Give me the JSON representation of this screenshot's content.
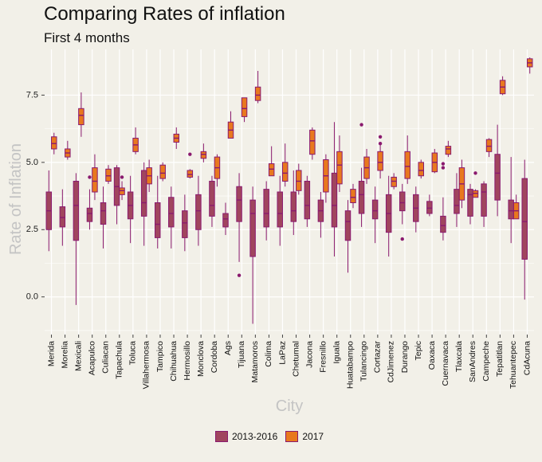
{
  "title": "Comparing Rates of inflation",
  "subtitle": "First 4 months",
  "chart_data": {
    "type": "boxplot",
    "title": "Comparing Rates of inflation",
    "subtitle": "First 4 months",
    "xlabel": "City",
    "ylabel": "Rate of Inflation",
    "ylim": [
      -1.4,
      9.2
    ],
    "yticks": [
      0.0,
      2.5,
      5.0,
      7.5
    ],
    "ytick_labels": [
      "0.0",
      "2.5",
      "5.0",
      "7.5"
    ],
    "grid": true,
    "legend_position": "bottom",
    "series": [
      {
        "name": "2013-2016",
        "color": "#a0455e"
      },
      {
        "name": "2017",
        "color": "#e8781e"
      }
    ],
    "cities": [
      {
        "city": "Merida",
        "a": {
          "min": 1.7,
          "q1": 2.5,
          "median": 3.2,
          "q3": 3.9,
          "max": 4.7,
          "outliers": []
        },
        "b": {
          "min": 5.3,
          "q1": 5.5,
          "median": 5.7,
          "q3": 5.95,
          "max": 6.1,
          "outliers": []
        }
      },
      {
        "city": "Morelia",
        "a": {
          "min": 1.9,
          "q1": 2.6,
          "median": 2.95,
          "q3": 3.35,
          "max": 4.0,
          "outliers": []
        },
        "b": {
          "min": 5.1,
          "q1": 5.2,
          "median": 5.35,
          "q3": 5.5,
          "max": 5.8,
          "outliers": []
        }
      },
      {
        "city": "Mexicali",
        "a": {
          "min": -0.3,
          "q1": 2.1,
          "median": 3.4,
          "q3": 4.3,
          "max": 4.6,
          "outliers": []
        },
        "b": {
          "min": 5.95,
          "q1": 6.4,
          "median": 6.75,
          "q3": 7.0,
          "max": 7.6,
          "outliers": []
        }
      },
      {
        "city": "Acapulco",
        "a": {
          "min": 2.5,
          "q1": 2.8,
          "median": 3.1,
          "q3": 3.3,
          "max": 4.0,
          "outliers": [
            4.45
          ]
        },
        "b": {
          "min": 3.6,
          "q1": 3.9,
          "median": 4.3,
          "q3": 4.8,
          "max": 5.3,
          "outliers": []
        }
      },
      {
        "city": "Culiacan",
        "a": {
          "min": 1.8,
          "q1": 2.7,
          "median": 3.2,
          "q3": 3.5,
          "max": 4.1,
          "outliers": []
        },
        "b": {
          "min": 4.2,
          "q1": 4.3,
          "median": 4.5,
          "q3": 4.75,
          "max": 4.9,
          "outliers": []
        }
      },
      {
        "city": "Tapachula",
        "a": {
          "min": 2.7,
          "q1": 3.4,
          "median": 4.1,
          "q3": 4.8,
          "max": 4.9,
          "outliers": []
        },
        "b": {
          "min": 3.6,
          "q1": 3.8,
          "median": 3.95,
          "q3": 4.05,
          "max": 4.3,
          "outliers": [
            4.45
          ]
        }
      },
      {
        "city": "Toluca",
        "a": {
          "min": 2.0,
          "q1": 2.9,
          "median": 3.4,
          "q3": 3.9,
          "max": 4.5,
          "outliers": []
        },
        "b": {
          "min": 5.3,
          "q1": 5.4,
          "median": 5.65,
          "q3": 5.9,
          "max": 6.3,
          "outliers": []
        }
      },
      {
        "city": "Villahermosa",
        "a": {
          "min": 1.9,
          "q1": 3.0,
          "median": 3.5,
          "q3": 4.7,
          "max": 5.0,
          "outliers": []
        },
        "b": {
          "min": 3.9,
          "q1": 4.2,
          "median": 4.5,
          "q3": 4.8,
          "max": 5.1,
          "outliers": []
        }
      },
      {
        "city": "Tampico",
        "a": {
          "min": 1.8,
          "q1": 2.2,
          "median": 2.7,
          "q3": 3.5,
          "max": 4.5,
          "outliers": []
        },
        "b": {
          "min": 4.3,
          "q1": 4.4,
          "median": 4.6,
          "q3": 4.9,
          "max": 5.0,
          "outliers": []
        }
      },
      {
        "city": "Chihuahua",
        "a": {
          "min": 1.8,
          "q1": 2.6,
          "median": 3.1,
          "q3": 3.7,
          "max": 4.1,
          "outliers": []
        },
        "b": {
          "min": 5.5,
          "q1": 5.75,
          "median": 5.9,
          "q3": 6.05,
          "max": 6.3,
          "outliers": []
        }
      },
      {
        "city": "Hermosillo",
        "a": {
          "min": 1.7,
          "q1": 2.2,
          "median": 2.75,
          "q3": 3.2,
          "max": 3.8,
          "outliers": []
        },
        "b": {
          "min": 4.4,
          "q1": 4.45,
          "median": 4.55,
          "q3": 4.7,
          "max": 4.75,
          "outliers": [
            5.3
          ]
        }
      },
      {
        "city": "Monclova",
        "a": {
          "min": 1.9,
          "q1": 2.5,
          "median": 3.2,
          "q3": 3.8,
          "max": 4.5,
          "outliers": []
        },
        "b": {
          "min": 5.0,
          "q1": 5.15,
          "median": 5.3,
          "q3": 5.4,
          "max": 5.7,
          "outliers": []
        }
      },
      {
        "city": "Cordoba",
        "a": {
          "min": 2.6,
          "q1": 3.0,
          "median": 3.4,
          "q3": 4.3,
          "max": 4.5,
          "outliers": []
        },
        "b": {
          "min": 4.1,
          "q1": 4.4,
          "median": 4.8,
          "q3": 5.2,
          "max": 5.3,
          "outliers": []
        }
      },
      {
        "city": "Ags",
        "a": {
          "min": 2.3,
          "q1": 2.6,
          "median": 2.9,
          "q3": 3.1,
          "max": 3.5,
          "outliers": []
        },
        "b": {
          "min": 5.9,
          "q1": 5.9,
          "median": 6.2,
          "q3": 6.5,
          "max": 6.9,
          "outliers": []
        }
      },
      {
        "city": "Tijuana",
        "a": {
          "min": 1.3,
          "q1": 2.8,
          "median": 3.6,
          "q3": 4.1,
          "max": 4.6,
          "outliers": [
            0.8
          ]
        },
        "b": {
          "min": 6.5,
          "q1": 6.7,
          "median": 7.0,
          "q3": 7.4,
          "max": 7.4,
          "outliers": []
        }
      },
      {
        "city": "Matamoros",
        "a": {
          "min": -1.0,
          "q1": 1.5,
          "median": 3.1,
          "q3": 3.6,
          "max": 4.1,
          "outliers": []
        },
        "b": {
          "min": 7.2,
          "q1": 7.3,
          "median": 7.5,
          "q3": 7.8,
          "max": 8.4,
          "outliers": []
        }
      },
      {
        "city": "Colima",
        "a": {
          "min": 2.1,
          "q1": 2.6,
          "median": 3.1,
          "q3": 4.0,
          "max": 4.3,
          "outliers": []
        },
        "b": {
          "min": 4.5,
          "q1": 4.5,
          "median": 4.75,
          "q3": 4.95,
          "max": 5.6,
          "outliers": []
        }
      },
      {
        "city": "LaPaz",
        "a": {
          "min": 1.9,
          "q1": 2.6,
          "median": 3.1,
          "q3": 3.9,
          "max": 4.5,
          "outliers": []
        },
        "b": {
          "min": 4.1,
          "q1": 4.3,
          "median": 4.6,
          "q3": 5.0,
          "max": 5.7,
          "outliers": []
        }
      },
      {
        "city": "Chetumal",
        "a": {
          "min": 2.3,
          "q1": 2.8,
          "median": 3.2,
          "q3": 3.9,
          "max": 4.7,
          "outliers": []
        },
        "b": {
          "min": 3.8,
          "q1": 3.95,
          "median": 4.3,
          "q3": 4.7,
          "max": 4.95,
          "outliers": []
        }
      },
      {
        "city": "Jacona",
        "a": {
          "min": 2.6,
          "q1": 2.9,
          "median": 3.4,
          "q3": 4.3,
          "max": 4.5,
          "outliers": []
        },
        "b": {
          "min": 5.1,
          "q1": 5.3,
          "median": 5.8,
          "q3": 6.2,
          "max": 6.3,
          "outliers": []
        }
      },
      {
        "city": "Fresnillo",
        "a": {
          "min": 2.2,
          "q1": 2.8,
          "median": 3.2,
          "q3": 3.6,
          "max": 3.9,
          "outliers": []
        },
        "b": {
          "min": 3.5,
          "q1": 3.9,
          "median": 4.5,
          "q3": 5.1,
          "max": 5.3,
          "outliers": []
        }
      },
      {
        "city": "Iguala",
        "a": {
          "min": 1.5,
          "q1": 2.6,
          "median": 3.4,
          "q3": 4.6,
          "max": 6.5,
          "outliers": []
        },
        "b": {
          "min": 3.9,
          "q1": 4.2,
          "median": 4.9,
          "q3": 5.4,
          "max": 6.0,
          "outliers": []
        }
      },
      {
        "city": "Huatabampo",
        "a": {
          "min": 0.9,
          "q1": 2.1,
          "median": 2.8,
          "q3": 3.2,
          "max": 3.6,
          "outliers": []
        },
        "b": {
          "min": 3.3,
          "q1": 3.5,
          "median": 3.7,
          "q3": 4.0,
          "max": 4.2,
          "outliers": []
        }
      },
      {
        "city": "Tulancingo",
        "a": {
          "min": 2.6,
          "q1": 3.1,
          "median": 3.8,
          "q3": 4.3,
          "max": 4.8,
          "outliers": [
            6.4
          ]
        },
        "b": {
          "min": 4.2,
          "q1": 4.4,
          "median": 4.8,
          "q3": 5.2,
          "max": 5.5,
          "outliers": []
        }
      },
      {
        "city": "Cortazar",
        "a": {
          "min": 2.0,
          "q1": 2.9,
          "median": 3.2,
          "q3": 3.6,
          "max": 4.1,
          "outliers": []
        },
        "b": {
          "min": 4.4,
          "q1": 4.7,
          "median": 5.0,
          "q3": 5.4,
          "max": 5.7,
          "outliers": [
            5.95,
            5.7
          ]
        }
      },
      {
        "city": "CdJimenez",
        "a": {
          "min": 1.5,
          "q1": 2.4,
          "median": 3.1,
          "q3": 3.8,
          "max": 4.5,
          "outliers": []
        },
        "b": {
          "min": 4.0,
          "q1": 4.1,
          "median": 4.3,
          "q3": 4.45,
          "max": 4.6,
          "outliers": []
        }
      },
      {
        "city": "Durango",
        "a": {
          "min": 2.7,
          "q1": 3.2,
          "median": 3.5,
          "q3": 3.9,
          "max": 4.2,
          "outliers": [
            2.15
          ]
        },
        "b": {
          "min": 4.2,
          "q1": 4.4,
          "median": 4.85,
          "q3": 5.4,
          "max": 6.0,
          "outliers": []
        }
      },
      {
        "city": "Tepic",
        "a": {
          "min": 2.4,
          "q1": 2.8,
          "median": 3.3,
          "q3": 3.8,
          "max": 4.1,
          "outliers": []
        },
        "b": {
          "min": 4.4,
          "q1": 4.5,
          "median": 4.7,
          "q3": 5.0,
          "max": 5.1,
          "outliers": []
        }
      },
      {
        "city": "Oaxaca",
        "a": {
          "min": 3.0,
          "q1": 3.1,
          "median": 3.3,
          "q3": 3.55,
          "max": 3.8,
          "outliers": []
        },
        "b": {
          "min": 4.6,
          "q1": 4.65,
          "median": 5.0,
          "q3": 5.35,
          "max": 5.5,
          "outliers": []
        }
      },
      {
        "city": "Cuernavaca",
        "a": {
          "min": 2.1,
          "q1": 2.4,
          "median": 2.65,
          "q3": 3.0,
          "max": 3.7,
          "outliers": [
            4.8,
            4.95
          ]
        },
        "b": {
          "min": 5.2,
          "q1": 5.3,
          "median": 5.5,
          "q3": 5.6,
          "max": 5.8,
          "outliers": []
        }
      },
      {
        "city": "Tlaxcala",
        "a": {
          "min": 2.6,
          "q1": 3.1,
          "median": 3.4,
          "q3": 4.0,
          "max": 4.6,
          "outliers": []
        },
        "b": {
          "min": 3.3,
          "q1": 3.6,
          "median": 4.2,
          "q3": 4.8,
          "max": 5.1,
          "outliers": []
        }
      },
      {
        "city": "SanAndres",
        "a": {
          "min": 2.7,
          "q1": 3.0,
          "median": 3.8,
          "q3": 4.0,
          "max": 4.2,
          "outliers": []
        },
        "b": {
          "min": 3.7,
          "q1": 3.7,
          "median": 3.85,
          "q3": 3.95,
          "max": 4.0,
          "outliers": [
            4.6
          ]
        }
      },
      {
        "city": "Campeche",
        "a": {
          "min": 2.6,
          "q1": 3.0,
          "median": 3.9,
          "q3": 4.2,
          "max": 4.3,
          "outliers": []
        },
        "b": {
          "min": 5.2,
          "q1": 5.4,
          "median": 5.6,
          "q3": 5.85,
          "max": 5.9,
          "outliers": []
        }
      },
      {
        "city": "Tepatitlan",
        "a": {
          "min": 3.0,
          "q1": 3.6,
          "median": 4.6,
          "q3": 5.3,
          "max": 6.4,
          "outliers": []
        },
        "b": {
          "min": 7.5,
          "q1": 7.55,
          "median": 7.8,
          "q3": 8.05,
          "max": 8.2,
          "outliers": []
        }
      },
      {
        "city": "Tehuantepec",
        "a": {
          "min": 2.0,
          "q1": 2.9,
          "median": 3.2,
          "q3": 3.6,
          "max": 5.2,
          "outliers": []
        },
        "b": {
          "min": 2.9,
          "q1": 2.9,
          "median": 3.2,
          "q3": 3.5,
          "max": 3.8,
          "outliers": []
        }
      },
      {
        "city": "CdAcuna",
        "a": {
          "min": -0.1,
          "q1": 1.4,
          "median": 2.8,
          "q3": 4.4,
          "max": 5.1,
          "outliers": []
        },
        "b": {
          "min": 8.3,
          "q1": 8.55,
          "median": 8.7,
          "q3": 8.85,
          "max": 8.9,
          "outliers": []
        }
      }
    ]
  }
}
